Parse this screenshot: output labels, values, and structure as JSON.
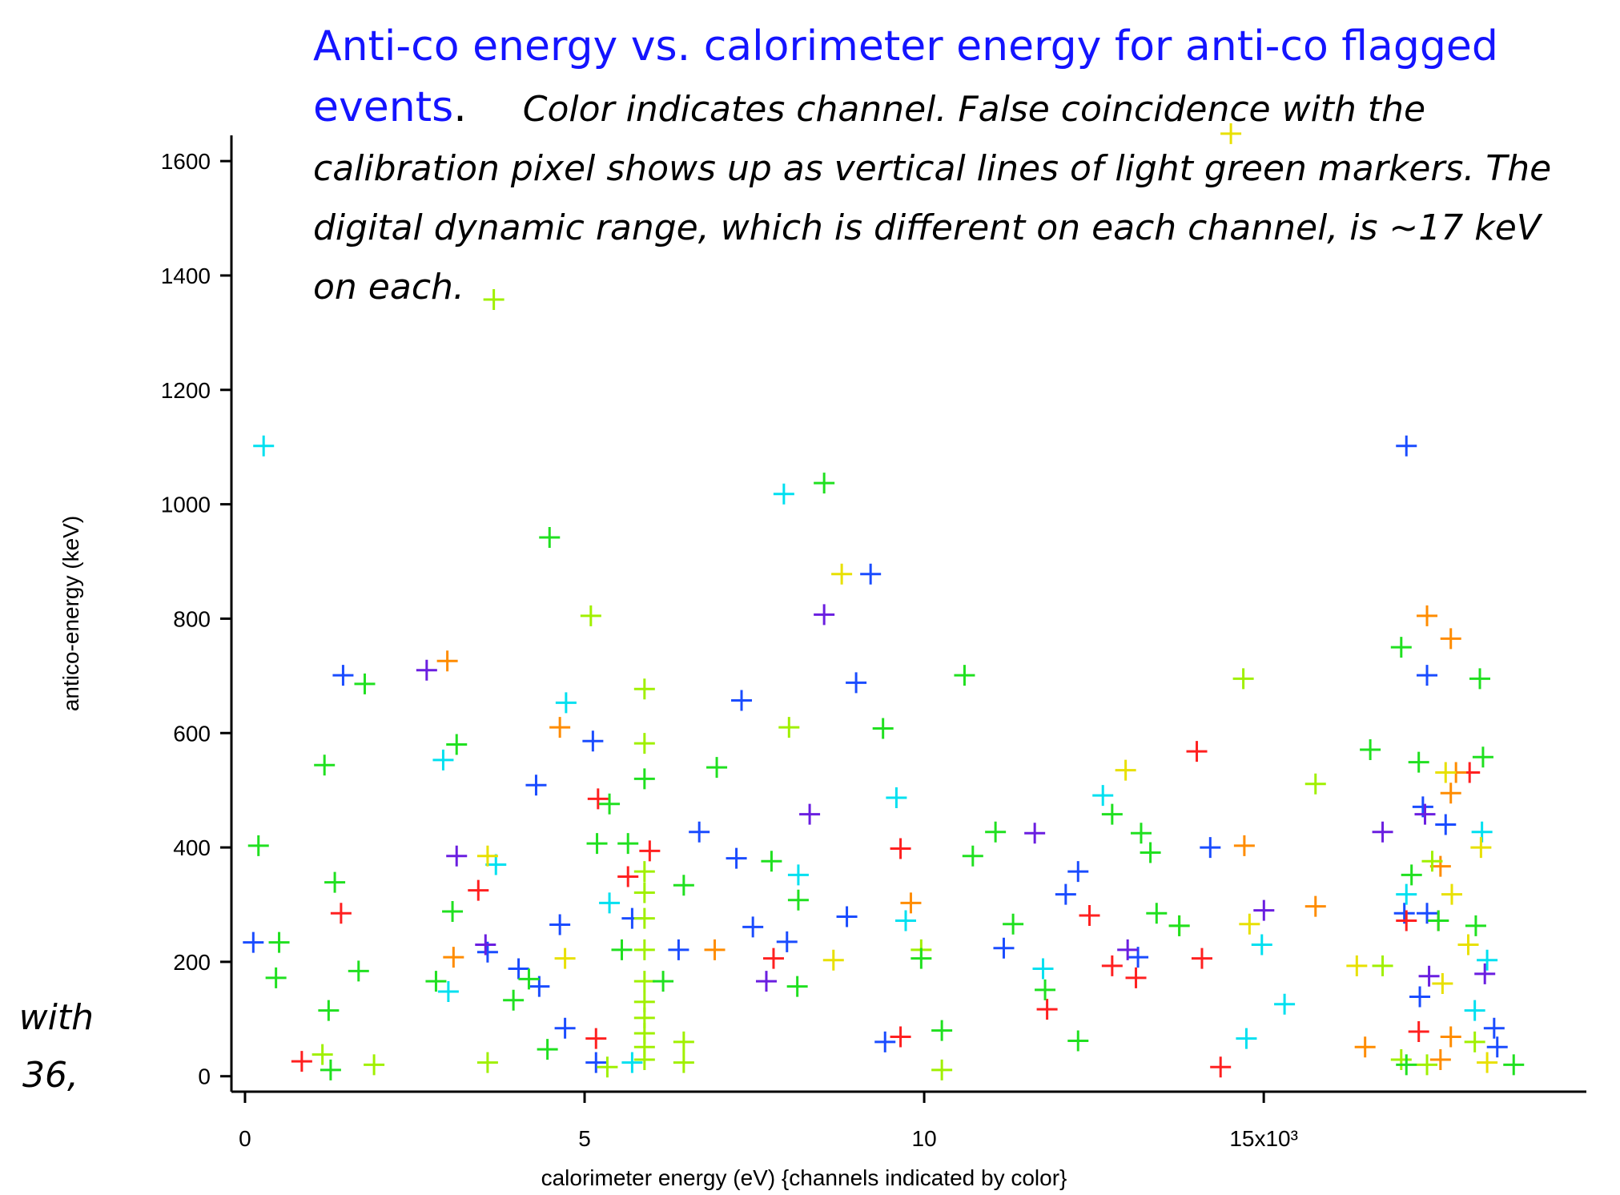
{
  "fragments": [
    "with",
    "36,"
  ],
  "chart_data": {
    "type": "scatter",
    "title": "Anti-co energy vs. calorimeter energy for anti-co flagged events",
    "title_period": ".",
    "subtitle": "Color indicates channel.  False coincidence with the calibration pixel shows up as vertical lines of light green markers.  The digital dynamic range, which is different on each channel, is ~17 keV on each.",
    "xlabel": "calorimeter energy (eV) {channels indicated by color}",
    "ylabel": "antico-energy (keV)",
    "xlim": [
      -200,
      19750
    ],
    "ylim": [
      -27,
      1645
    ],
    "xticks": [
      0,
      {
        "value": 5000,
        "label": "5"
      },
      {
        "value": 10000,
        "label": "10"
      },
      {
        "value": 15000,
        "label": "15x10³"
      }
    ],
    "yticks": [
      0,
      200,
      400,
      600,
      800,
      1000,
      1200,
      1400,
      1600
    ],
    "series": [
      {
        "color": "#1a4cff",
        "x": [
          122,
          1444,
          5122,
          4286,
          7311,
          9211,
          8998,
          7235,
          6688,
          4636,
          4332,
          4712,
          5168,
          7478,
          7980,
          9424,
          8862,
          11172,
          12084,
          14212,
          17100,
          17404,
          17343,
          17678,
          18392,
          18438,
          17404,
          17070,
          17298,
          5700,
          6384,
          4028,
          3572,
          12266,
          13148
        ],
        "values": [
          234,
          701,
          586,
          509,
          657,
          878,
          688,
          381,
          427,
          265,
          157,
          84,
          24,
          261,
          235,
          60,
          279,
          224,
          318,
          400,
          1102,
          701,
          471,
          440,
          84,
          51,
          285,
          285,
          139,
          276,
          221,
          188,
          217,
          358,
          208
        ]
      },
      {
        "color": "#6a1ee0",
        "x": [
          2675,
          8527,
          8314,
          3116,
          11628,
          16750,
          15002,
          12996,
          17434,
          18255,
          3541,
          7676,
          17374
        ],
        "values": [
          710,
          807,
          458,
          385,
          425,
          427,
          290,
          221,
          175,
          179,
          230,
          166,
          458
        ]
      },
      {
        "color": "#00e0f0",
        "x": [
          274,
          7934,
          4727,
          2918,
          3694,
          9591,
          8147,
          12631,
          14972,
          15306,
          14744,
          17100,
          18107,
          18289,
          18213,
          9728,
          5366,
          2994,
          11750,
          5700
        ],
        "values": [
          1102,
          1018,
          653,
          553,
          370,
          487,
          352,
          491,
          230,
          126,
          66,
          318,
          115,
          203,
          427,
          272,
          303,
          148,
          188,
          24
        ]
      },
      {
        "color": "#ff2020",
        "x": [
          3435,
          1414,
          5198,
          5639,
          5959,
          9652,
          14014,
          18031,
          17571,
          14090,
          12768,
          12434,
          13118,
          11810,
          7782,
          9652,
          5168,
          836,
          14364,
          17282,
          17100
        ],
        "values": [
          325,
          285,
          485,
          349,
          394,
          398,
          568,
          531,
          272,
          206,
          193,
          281,
          172,
          117,
          206,
          69,
          66,
          26,
          16,
          78,
          272
        ]
      },
      {
        "color": "#ff8c00",
        "x": [
          2979,
          17404,
          17754,
          4636,
          14714,
          17602,
          16492,
          9804,
          15762,
          17754,
          17602,
          6916,
          3070,
          17830,
          17754
        ],
        "values": [
          726,
          805,
          765,
          610,
          403,
          367,
          51,
          303,
          297,
          69,
          29,
          221,
          208,
          531,
          495
        ]
      },
      {
        "color": "#e8e000",
        "x": [
          14516,
          8786,
          12966,
          18198,
          17678,
          18011,
          8664,
          14790,
          17632,
          3572,
          18289,
          4712,
          16370,
          17769
        ],
        "values": [
          1648,
          878,
          535,
          400,
          531,
          230,
          203,
          266,
          162,
          385,
          24,
          206,
          193,
          318
        ]
      },
      {
        "color": "#a0f000",
        "x": [
          3663,
          5092,
          8010,
          5882,
          5882,
          14699,
          15762,
          16750,
          17480,
          13756,
          18107,
          10260,
          5882,
          5882,
          5882,
          6460,
          6460,
          5335,
          3572,
          1900,
          5882,
          5882,
          5882,
          5882,
          5882,
          5882,
          5882,
          9956,
          17024,
          17404,
          1140
        ],
        "values": [
          1358,
          805,
          610,
          677,
          582,
          695,
          511,
          193,
          376,
          263,
          60,
          11,
          75,
          51,
          29,
          24,
          60,
          16,
          24,
          20,
          166,
          221,
          276,
          321,
          358,
          130,
          102,
          221,
          29,
          20,
          38
        ]
      },
      {
        "color": "#20e020",
        "x": [
          198,
          502,
          456,
          1170,
          1322,
          3116,
          1763,
          4484,
          8527,
          10594,
          9394,
          5183,
          5882,
          6946,
          17024,
          16568,
          17282,
          18182,
          18228,
          11050,
          10716,
          12768,
          13194,
          13331,
          13422,
          13756,
          11309,
          12266,
          10260,
          8132,
          9956,
          7752,
          8147,
          3055,
          1672,
          1261,
          1231,
          4453,
          5366,
          5639,
          6460,
          18122,
          17176,
          17571,
          17100,
          18680,
          11780,
          6156,
          5548,
          4180,
          3952,
          2812
        ],
        "values": [
          403,
          234,
          172,
          544,
          339,
          580,
          686,
          942,
          1037,
          701,
          608,
          407,
          520,
          540,
          750,
          571,
          549,
          695,
          558,
          427,
          385,
          458,
          425,
          391,
          285,
          263,
          266,
          62,
          80,
          157,
          206,
          376,
          308,
          288,
          184,
          11,
          115,
          47,
          476,
          407,
          334,
          263,
          352,
          272,
          20,
          20,
          151,
          166,
          221,
          170,
          133,
          166
        ]
      }
    ]
  }
}
